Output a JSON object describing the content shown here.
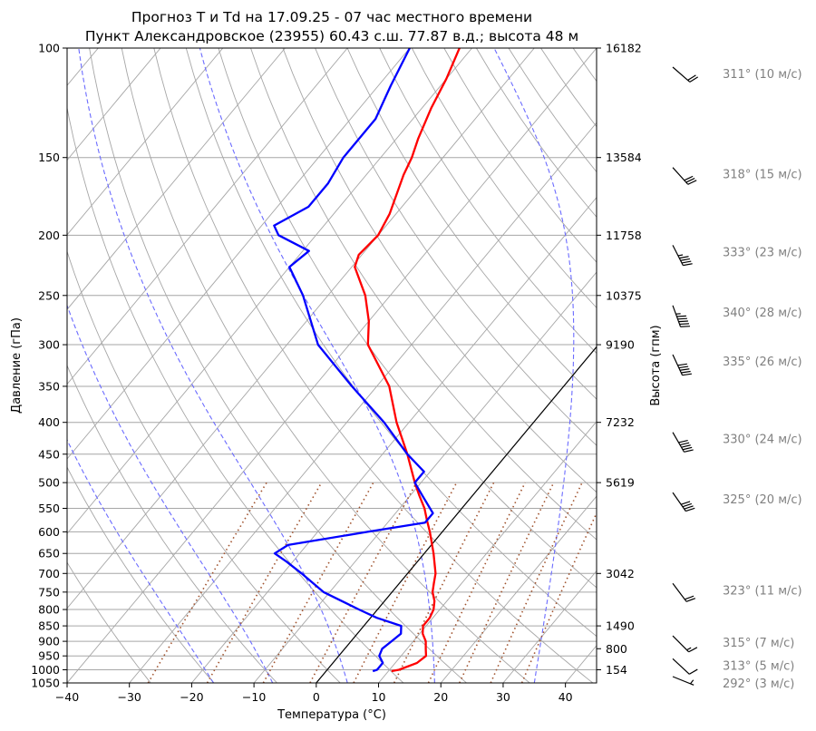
{
  "chart_data": {
    "type": "line",
    "subtype": "skew-T log-p diagram",
    "title": "Прогноз T и Td на 17.09.25 - 07 час местного времени",
    "subtitle": "Пункт Александровское (23955) 60.43 с.ш. 77.87 в.д.; высота 48 м",
    "xlabel": "Температура (°C)",
    "ylabel": "Давление (гПа)",
    "ylabel_right": "Высота (гпм)",
    "xlim": [
      -40,
      45
    ],
    "ylim": [
      1050,
      100
    ],
    "yscale": "log",
    "grid": true,
    "x_ticks": [
      "−40",
      "−30",
      "−20",
      "−10",
      "0",
      "10",
      "20",
      "30",
      "40"
    ],
    "pressure_ticks": [
      100,
      150,
      200,
      250,
      300,
      350,
      400,
      450,
      500,
      550,
      600,
      650,
      700,
      750,
      800,
      850,
      900,
      950,
      1000,
      1050
    ],
    "height_labels": [
      {
        "p": 100,
        "h": "16182"
      },
      {
        "p": 150,
        "h": "13584"
      },
      {
        "p": 200,
        "h": "11758"
      },
      {
        "p": 250,
        "h": "10375"
      },
      {
        "p": 300,
        "h": "9190"
      },
      {
        "p": 400,
        "h": "7232"
      },
      {
        "p": 500,
        "h": "5619"
      },
      {
        "p": 700,
        "h": "3042"
      },
      {
        "p": 850,
        "h": "1490"
      },
      {
        "p": 925,
        "h": "800"
      },
      {
        "p": 1000,
        "h": "154"
      }
    ],
    "series": [
      {
        "key": "temperature",
        "color": "#ff0000",
        "points": [
          [
            1005,
            10.5
          ],
          [
            1000,
            11.5
          ],
          [
            975,
            13.5
          ],
          [
            950,
            14.0
          ],
          [
            925,
            13.0
          ],
          [
            900,
            12.0
          ],
          [
            875,
            10.5
          ],
          [
            850,
            9.5
          ],
          [
            825,
            9.5
          ],
          [
            800,
            9.0
          ],
          [
            775,
            8.0
          ],
          [
            750,
            6.5
          ],
          [
            725,
            5.5
          ],
          [
            700,
            4.5
          ],
          [
            650,
            1.5
          ],
          [
            600,
            -2.0
          ],
          [
            575,
            -4.0
          ],
          [
            550,
            -6.0
          ],
          [
            525,
            -8.5
          ],
          [
            500,
            -11.0
          ],
          [
            450,
            -16.0
          ],
          [
            400,
            -22.0
          ],
          [
            350,
            -28.0
          ],
          [
            300,
            -37.0
          ],
          [
            275,
            -40.0
          ],
          [
            250,
            -44.0
          ],
          [
            225,
            -49.5
          ],
          [
            215,
            -50.5
          ],
          [
            200,
            -50.0
          ],
          [
            185,
            -51.0
          ],
          [
            160,
            -54.0
          ],
          [
            150,
            -55.0
          ],
          [
            140,
            -56.5
          ],
          [
            125,
            -58.5
          ],
          [
            112,
            -60.0
          ],
          [
            100,
            -62.0
          ]
        ]
      },
      {
        "key": "dewpoint",
        "color": "#0000ff",
        "points": [
          [
            1005,
            7.5
          ],
          [
            1000,
            8.0
          ],
          [
            975,
            8.0
          ],
          [
            950,
            6.5
          ],
          [
            925,
            6.0
          ],
          [
            900,
            6.5
          ],
          [
            875,
            7.0
          ],
          [
            850,
            6.0
          ],
          [
            825,
            1.0
          ],
          [
            800,
            -3.0
          ],
          [
            750,
            -11.0
          ],
          [
            700,
            -17.0
          ],
          [
            670,
            -21.0
          ],
          [
            650,
            -24.0
          ],
          [
            630,
            -23.0
          ],
          [
            600,
            -12.0
          ],
          [
            580,
            -4.0
          ],
          [
            560,
            -4.0
          ],
          [
            525,
            -8.0
          ],
          [
            500,
            -11.0
          ],
          [
            480,
            -11.0
          ],
          [
            450,
            -16.0
          ],
          [
            400,
            -24.0
          ],
          [
            350,
            -34.0
          ],
          [
            300,
            -45.0
          ],
          [
            250,
            -54.0
          ],
          [
            225,
            -60.0
          ],
          [
            212,
            -59.0
          ],
          [
            200,
            -66.0
          ],
          [
            193,
            -68.0
          ],
          [
            180,
            -65.0
          ],
          [
            165,
            -65.0
          ],
          [
            150,
            -66.0
          ],
          [
            130,
            -66.0
          ],
          [
            115,
            -68.0
          ],
          [
            100,
            -70.0
          ]
        ]
      }
    ],
    "parcel_line_color": "#000000",
    "reference_lines": {
      "dry_adiabats_color": "#a6a6a6",
      "moist_adiabats_color": "#6b6bff",
      "mixing_ratio_color": "#a0522d",
      "isobars_color": "#a6a6a6"
    },
    "wind": [
      {
        "p": 100,
        "dir": 311,
        "speed": 10,
        "label": "311° (10 м/с)"
      },
      {
        "p": 150,
        "dir": 318,
        "speed": 15,
        "label": "318° (15 м/с)"
      },
      {
        "p": 200,
        "dir": 333,
        "speed": 23,
        "label": "333° (23 м/с)"
      },
      {
        "p": 250,
        "dir": 340,
        "speed": 28,
        "label": "340° (28 м/с)"
      },
      {
        "p": 300,
        "dir": 335,
        "speed": 26,
        "label": "335° (26 м/с)"
      },
      {
        "p": 400,
        "dir": 330,
        "speed": 24,
        "label": "330° (24 м/с)"
      },
      {
        "p": 500,
        "dir": 325,
        "speed": 20,
        "label": "325° (20 м/с)"
      },
      {
        "p": 700,
        "dir": 323,
        "speed": 11,
        "label": "323° (11 м/с)"
      },
      {
        "p": 850,
        "dir": 315,
        "speed": 7,
        "label": "315° (7 м/с)"
      },
      {
        "p": 925,
        "dir": 313,
        "speed": 5,
        "label": "313° (5 м/с)"
      },
      {
        "p": 1000,
        "dir": 292,
        "speed": 3,
        "label": "292° (3 м/с)"
      }
    ]
  }
}
